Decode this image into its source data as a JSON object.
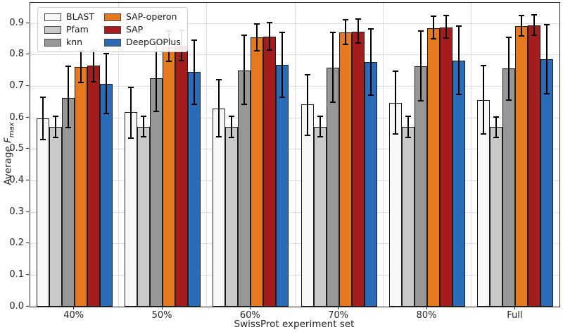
{
  "labels": {
    "ylabel_prefix": "Average ",
    "ylabel_f": "F",
    "ylabel_sub": "max",
    "xlabel": "SwissProt experiment set"
  },
  "chart_data": {
    "type": "bar",
    "title": "",
    "xlabel": "SwissProt experiment set",
    "ylabel": "Average F_max",
    "categories": [
      "40%",
      "50%",
      "60%",
      "70%",
      "80%",
      "Full"
    ],
    "ylim": [
      0,
      0.965
    ],
    "yticks": [
      "0.0",
      "0.1",
      "0.2",
      "0.3",
      "0.4",
      "0.5",
      "0.6",
      "0.7",
      "0.8",
      "0.9"
    ],
    "grid": true,
    "legend_position": "upper left",
    "bar_edge_color": "#1c1c1c",
    "error_bar_color": "#000000",
    "series": [
      {
        "name": "BLAST",
        "color": "#f7f7f7",
        "values": [
          0.597,
          0.617,
          0.63,
          0.642,
          0.648,
          0.655
        ],
        "err_low": [
          0.53,
          0.536,
          0.54,
          0.544,
          0.549,
          0.548
        ],
        "err_high": [
          0.664,
          0.697,
          0.72,
          0.737,
          0.748,
          0.765
        ]
      },
      {
        "name": "Pfam",
        "color": "#c9c9c9",
        "values": [
          0.571,
          0.572,
          0.57,
          0.57,
          0.57,
          0.57
        ],
        "err_low": [
          0.538,
          0.539,
          0.538,
          0.539,
          0.538,
          0.538
        ],
        "err_high": [
          0.604,
          0.604,
          0.605,
          0.604,
          0.604,
          0.603
        ]
      },
      {
        "name": "knn",
        "color": "#979797",
        "values": [
          0.662,
          0.725,
          0.75,
          0.758,
          0.763,
          0.756
        ],
        "err_low": [
          0.568,
          0.62,
          0.642,
          0.65,
          0.654,
          0.657
        ],
        "err_high": [
          0.763,
          0.832,
          0.861,
          0.871,
          0.875,
          0.856
        ]
      },
      {
        "name": "SAP-operon",
        "color": "#e5791f",
        "values": [
          0.762,
          0.825,
          0.856,
          0.871,
          0.884,
          0.891
        ],
        "err_low": [
          0.712,
          0.779,
          0.813,
          0.833,
          0.85,
          0.859
        ],
        "err_high": [
          0.812,
          0.875,
          0.898,
          0.911,
          0.922,
          0.925
        ]
      },
      {
        "name": "SAP",
        "color": "#a51c1c",
        "values": [
          0.765,
          0.829,
          0.858,
          0.874,
          0.886,
          0.893
        ],
        "err_low": [
          0.715,
          0.781,
          0.815,
          0.837,
          0.852,
          0.861
        ],
        "err_high": [
          0.815,
          0.877,
          0.902,
          0.913,
          0.924,
          0.927
        ]
      },
      {
        "name": "DeepGOPlus",
        "color": "#2a6cb8",
        "values": [
          0.708,
          0.745,
          0.767,
          0.776,
          0.781,
          0.786
        ],
        "err_low": [
          0.613,
          0.642,
          0.664,
          0.672,
          0.673,
          0.676
        ],
        "err_high": [
          0.803,
          0.846,
          0.872,
          0.883,
          0.89,
          0.896
        ]
      }
    ]
  }
}
